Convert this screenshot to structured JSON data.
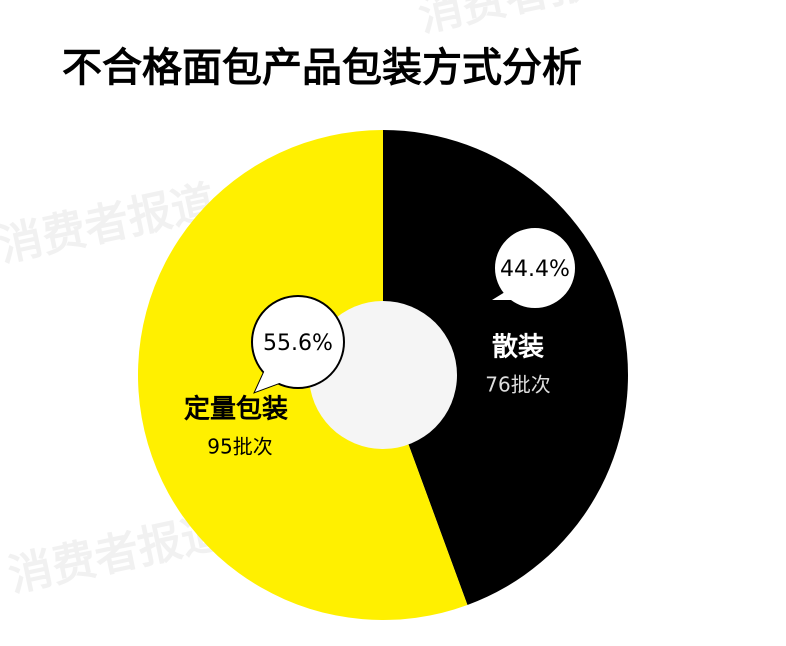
{
  "chart_data": {
    "type": "pie",
    "title": "不合格面包产品包装方式分析",
    "watermark": "消费者报道",
    "categories": [
      "散装",
      "定量包装"
    ],
    "values": [
      44.4,
      55.6
    ],
    "value_labels": [
      "44.4%",
      "55.6%"
    ],
    "batches": [
      76,
      95
    ],
    "batch_labels": [
      "76批次",
      "95批次"
    ],
    "colors": [
      "#000000",
      "#fff000"
    ]
  }
}
